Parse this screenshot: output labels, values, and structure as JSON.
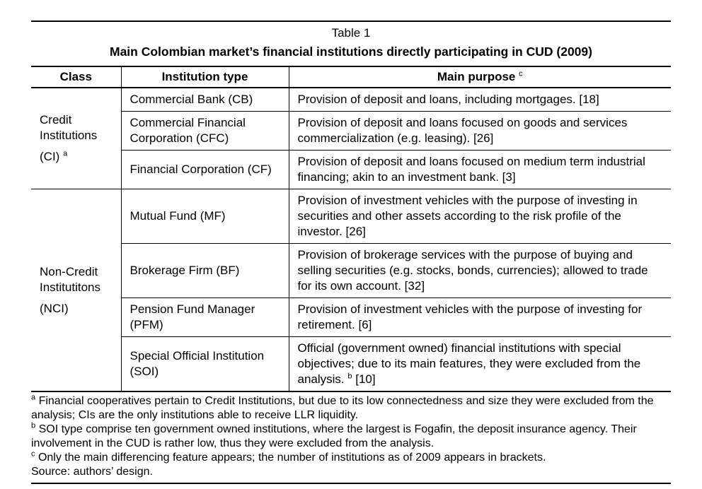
{
  "header": {
    "table_label": "Table 1",
    "title": "Main Colombian market’s financial institutions directly participating in CUD (2009)"
  },
  "columns": {
    "class_label": "Class",
    "institution_label": "Institution type",
    "purpose_label": "Main purpose",
    "purpose_sup": "c"
  },
  "groups": [
    {
      "class_name": "Credit Institutions",
      "class_abbr": "(CI)",
      "class_sup": "a",
      "rows": [
        {
          "institution": "Commercial Bank (CB)",
          "purpose_pre": "Provision of deposit and loans, including mortgages. [18]",
          "purpose_sup": "",
          "purpose_post": ""
        },
        {
          "institution": "Commercial Financial Corporation (CFC)",
          "purpose_pre": "Provision of deposit and loans focused on goods and services commercialization (e.g. leasing). [26]",
          "purpose_sup": "",
          "purpose_post": ""
        },
        {
          "institution": "Financial Corporation (CF)",
          "purpose_pre": "Provision of deposit and loans focused on medium term industrial financing; akin to an investment bank. [3]",
          "purpose_sup": "",
          "purpose_post": ""
        }
      ]
    },
    {
      "class_name": "Non-Credit Institutitons",
      "class_abbr": "(NCI)",
      "class_sup": "",
      "rows": [
        {
          "institution": "Mutual Fund (MF)",
          "purpose_pre": "Provision of investment vehicles with the purpose of investing in securities and other assets according to the risk profile of the investor. [26]",
          "purpose_sup": "",
          "purpose_post": ""
        },
        {
          "institution": "Brokerage Firm (BF)",
          "purpose_pre": "Provision of brokerage services with the purpose of buying and selling securities (e.g. stocks, bonds, currencies); allowed to trade for its own account. [32]",
          "purpose_sup": "",
          "purpose_post": ""
        },
        {
          "institution": "Pension Fund Manager (PFM)",
          "purpose_pre": "Provision of investment vehicles with the purpose of investing for retirement. [6]",
          "purpose_sup": "",
          "purpose_post": ""
        },
        {
          "institution": "Special Official Institution (SOI)",
          "purpose_pre": "Official (government owned) financial institutions with special objectives; due to its main features, they were excluded from the analysis. ",
          "purpose_sup": "b",
          "purpose_post": " [10]"
        }
      ]
    }
  ],
  "footnotes": [
    {
      "sup": "a",
      "text": " Financial cooperatives pertain to Credit Institutions, but due to its low connectedness and size they were excluded from the analysis; CIs are the only institutions able to receive LLR liquidity."
    },
    {
      "sup": "b",
      "text": " SOI type comprise ten government owned institutions, where the largest is Fogafin, the deposit insurance agency. Their involvement in the CUD is rather low, thus they were excluded from the analysis."
    },
    {
      "sup": "c",
      "text": " Only the main differencing feature appears; the number of institutions as of 2009 appears in brackets."
    },
    {
      "sup": "",
      "text": "Source: authors’ design."
    }
  ],
  "colors": {
    "text": "#000000",
    "background": "#ffffff",
    "border": "#000000"
  }
}
